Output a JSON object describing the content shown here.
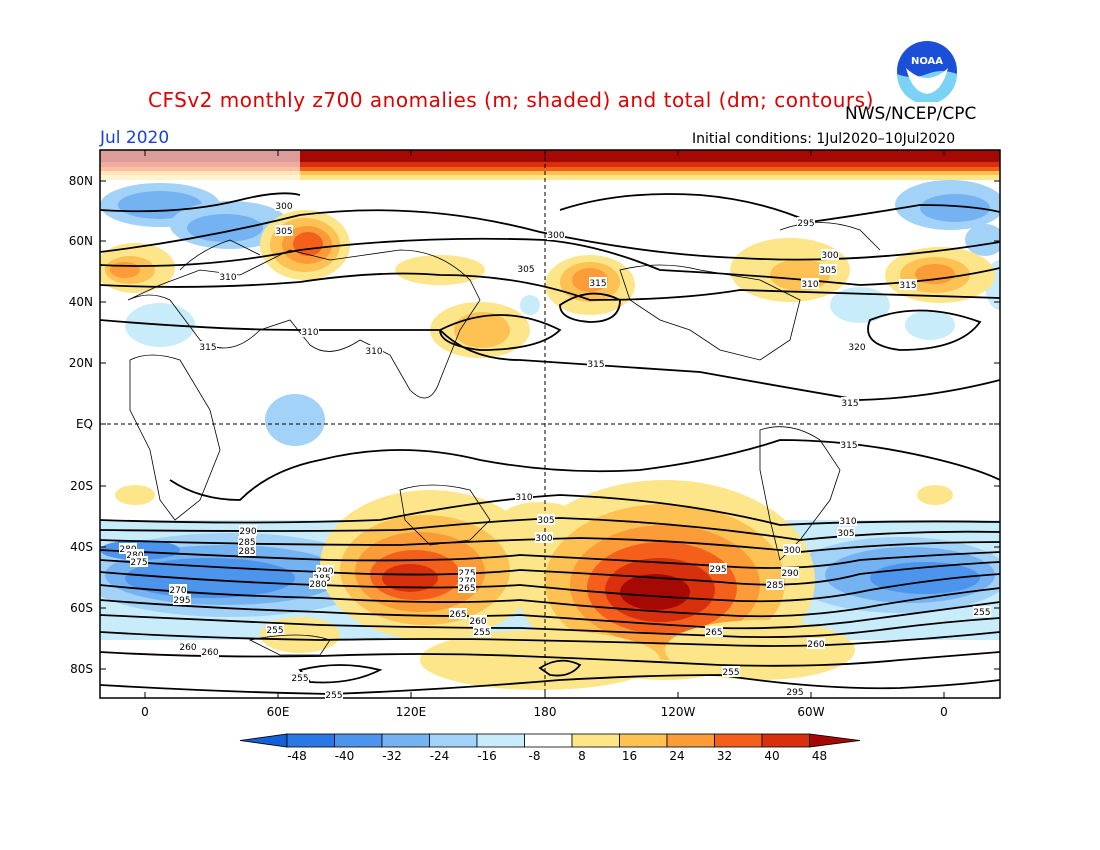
{
  "title": "CFSv2 monthly z700 anomalies (m; shaded) and total (dm; contours)",
  "agency": "NWS/NCEP/CPC",
  "logo_text": "NOAA",
  "month": "Jul 2020",
  "initial_conditions": "Initial conditions: 1Jul2020–10Jul2020",
  "lat_labels": [
    "80N",
    "60N",
    "40N",
    "20N",
    "EQ",
    "20S",
    "40S",
    "60S",
    "80S"
  ],
  "lon_labels": [
    "0",
    "60E",
    "120E",
    "180",
    "120W",
    "60W",
    "0"
  ],
  "colorbar": {
    "ticks": [
      "-48",
      "-40",
      "-32",
      "-24",
      "-16",
      "-8",
      "8",
      "16",
      "24",
      "32",
      "40",
      "48"
    ],
    "colors": [
      "#1560d8",
      "#2a78e4",
      "#4c94ec",
      "#74b2f2",
      "#a2d2f8",
      "#c8ecfa",
      "#ffffff",
      "#fde58a",
      "#fdc154",
      "#fb9c38",
      "#f4601c",
      "#d8300c",
      "#a60804"
    ]
  },
  "contour_labels": [
    "300",
    "305",
    "310",
    "315",
    "305",
    "300",
    "295",
    "300",
    "305",
    "310",
    "315",
    "310",
    "315",
    "310",
    "320",
    "315",
    "315",
    "315",
    "310",
    "305",
    "300",
    "295",
    "290",
    "285",
    "285",
    "280",
    "280",
    "275",
    "270",
    "295",
    "290",
    "285",
    "280",
    "275",
    "270",
    "265",
    "265",
    "260",
    "255",
    "255",
    "260",
    "265",
    "260",
    "255",
    "260",
    "255",
    "255",
    "295",
    "310",
    "305",
    "300",
    "290",
    "285",
    "255"
  ]
}
